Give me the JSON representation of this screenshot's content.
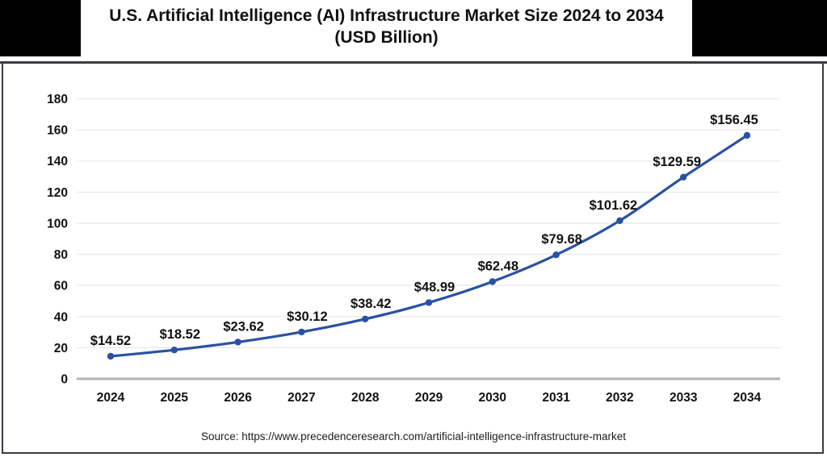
{
  "header": {
    "title": "U.S. Artificial Intelligence (AI) Infrastructure Market Size 2024 to 2034",
    "subtitle": "(USD Billion)"
  },
  "chart_data": {
    "type": "line",
    "title": "U.S. Artificial Intelligence (AI) Infrastructure Market Size 2024 to 2034",
    "subtitle": "(USD Billion)",
    "categories": [
      "2024",
      "2025",
      "2026",
      "2027",
      "2028",
      "2029",
      "2030",
      "2031",
      "2032",
      "2033",
      "2034"
    ],
    "series": [
      {
        "name": "U.S. AI infrastructure market size (USD Billion)",
        "values": [
          14.52,
          18.52,
          23.62,
          30.12,
          38.42,
          48.99,
          62.48,
          79.68,
          101.62,
          129.59,
          156.45
        ]
      }
    ],
    "data_labels": [
      "$14.52",
      "$18.52",
      "$23.62",
      "$30.12",
      "$38.42",
      "$48.99",
      "$62.48",
      "$79.68",
      "$101.62",
      "$129.59",
      "$156.45"
    ],
    "xlabel": "",
    "ylabel": "",
    "ylim": [
      0,
      180
    ],
    "ytick_interval": 20,
    "ytick_labels": [
      "0",
      "20",
      "40",
      "60",
      "80",
      "100",
      "120",
      "140",
      "160",
      "180"
    ],
    "grid": "horizontal",
    "legend": "none",
    "line_color": "#2951a3",
    "marker": "circle",
    "gridline_color": "#ececec",
    "axis_line_color": "#b3b3b3",
    "label_color": "#111111"
  },
  "footer": {
    "source": "Source: https://www.precedenceresearch.com/artificial-intelligence-infrastructure-market"
  }
}
